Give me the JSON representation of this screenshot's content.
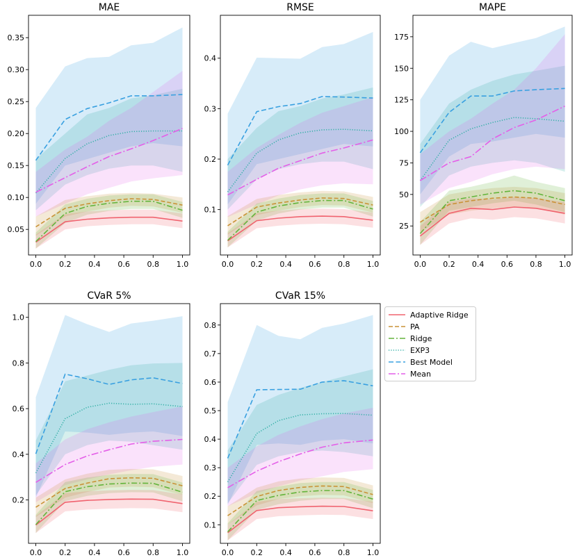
{
  "chart_data": [
    {
      "type": "line",
      "title": "MAE",
      "x": [
        0.0,
        0.2,
        0.35,
        0.5,
        0.65,
        0.8,
        1.0
      ],
      "xticks": [
        "0.0",
        "0.2",
        "0.4",
        "0.6",
        "0.8",
        "1.0"
      ],
      "ylim": [
        0.01,
        0.385
      ],
      "yticks": [
        "0.05",
        "0.10",
        "0.15",
        "0.20",
        "0.25",
        "0.30",
        "0.35"
      ],
      "series": [
        {
          "name": "Adaptive Ridge",
          "values": [
            0.03,
            0.062,
            0.066,
            0.068,
            0.069,
            0.069,
            0.063
          ],
          "upper": [
            0.042,
            0.074,
            0.078,
            0.08,
            0.081,
            0.081,
            0.075
          ],
          "lower": [
            0.02,
            0.05,
            0.055,
            0.057,
            0.058,
            0.058,
            0.052
          ]
        },
        {
          "name": "PA",
          "values": [
            0.054,
            0.083,
            0.09,
            0.095,
            0.098,
            0.097,
            0.088
          ],
          "upper": [
            0.07,
            0.096,
            0.102,
            0.106,
            0.107,
            0.106,
            0.1
          ],
          "lower": [
            0.04,
            0.07,
            0.078,
            0.084,
            0.087,
            0.086,
            0.076
          ]
        },
        {
          "name": "Ridge",
          "values": [
            0.031,
            0.075,
            0.086,
            0.091,
            0.094,
            0.094,
            0.08
          ],
          "upper": [
            0.045,
            0.089,
            0.098,
            0.103,
            0.105,
            0.105,
            0.093
          ],
          "lower": [
            0.02,
            0.06,
            0.073,
            0.079,
            0.082,
            0.082,
            0.068
          ]
        },
        {
          "name": "EXP3",
          "values": [
            0.107,
            0.161,
            0.184,
            0.197,
            0.203,
            0.204,
            0.204
          ],
          "upper": [
            0.16,
            0.2,
            0.23,
            0.24,
            0.255,
            0.26,
            0.27
          ],
          "lower": [
            0.08,
            0.12,
            0.135,
            0.145,
            0.15,
            0.15,
            0.14
          ]
        },
        {
          "name": "Best Model",
          "values": [
            0.158,
            0.222,
            0.239,
            0.248,
            0.259,
            0.259,
            0.261
          ],
          "upper": [
            0.24,
            0.305,
            0.318,
            0.32,
            0.338,
            0.342,
            0.366
          ],
          "lower": [
            0.09,
            0.15,
            0.16,
            0.17,
            0.18,
            0.185,
            0.18
          ]
        },
        {
          "name": "Mean",
          "values": [
            0.108,
            0.131,
            0.148,
            0.164,
            0.176,
            0.189,
            0.208
          ],
          "upper": [
            0.14,
            0.175,
            0.195,
            0.22,
            0.24,
            0.265,
            0.298
          ],
          "lower": [
            0.07,
            0.09,
            0.105,
            0.115,
            0.125,
            0.13,
            0.135
          ]
        }
      ]
    },
    {
      "type": "line",
      "title": "RMSE",
      "x": [
        0.0,
        0.2,
        0.35,
        0.5,
        0.65,
        0.8,
        1.0
      ],
      "xticks": [
        "0.0",
        "0.2",
        "0.4",
        "0.6",
        "0.8",
        "1.0"
      ],
      "ylim": [
        0.01,
        0.485
      ],
      "yticks": [
        "0.1",
        "0.2",
        "0.3",
        "0.4"
      ],
      "series": [
        {
          "name": "Adaptive Ridge",
          "values": [
            0.038,
            0.078,
            0.083,
            0.086,
            0.087,
            0.086,
            0.079
          ],
          "upper": [
            0.053,
            0.093,
            0.098,
            0.101,
            0.102,
            0.101,
            0.094
          ],
          "lower": [
            0.025,
            0.063,
            0.068,
            0.071,
            0.072,
            0.071,
            0.064
          ]
        },
        {
          "name": "PA",
          "values": [
            0.068,
            0.105,
            0.113,
            0.119,
            0.123,
            0.122,
            0.109
          ],
          "upper": [
            0.087,
            0.121,
            0.129,
            0.134,
            0.137,
            0.136,
            0.125
          ],
          "lower": [
            0.05,
            0.089,
            0.098,
            0.105,
            0.109,
            0.108,
            0.094
          ]
        },
        {
          "name": "Ridge",
          "values": [
            0.039,
            0.095,
            0.107,
            0.114,
            0.118,
            0.118,
            0.101
          ],
          "upper": [
            0.056,
            0.112,
            0.122,
            0.129,
            0.132,
            0.132,
            0.117
          ],
          "lower": [
            0.025,
            0.078,
            0.092,
            0.1,
            0.104,
            0.104,
            0.086
          ]
        },
        {
          "name": "EXP3",
          "values": [
            0.135,
            0.212,
            0.238,
            0.252,
            0.258,
            0.259,
            0.256
          ],
          "upper": [
            0.2,
            0.262,
            0.295,
            0.305,
            0.32,
            0.328,
            0.342
          ],
          "lower": [
            0.1,
            0.16,
            0.18,
            0.19,
            0.195,
            0.195,
            0.18
          ]
        },
        {
          "name": "Best Model",
          "values": [
            0.188,
            0.294,
            0.304,
            0.31,
            0.324,
            0.323,
            0.321
          ],
          "upper": [
            0.29,
            0.401,
            0.4,
            0.399,
            0.422,
            0.428,
            0.452
          ],
          "lower": [
            0.11,
            0.19,
            0.2,
            0.21,
            0.22,
            0.23,
            0.225
          ]
        },
        {
          "name": "Mean",
          "values": [
            0.129,
            0.16,
            0.182,
            0.197,
            0.212,
            0.222,
            0.238
          ],
          "upper": [
            0.175,
            0.222,
            0.248,
            0.272,
            0.292,
            0.305,
            0.323
          ],
          "lower": [
            0.085,
            0.11,
            0.128,
            0.14,
            0.148,
            0.152,
            0.15
          ]
        }
      ]
    },
    {
      "type": "line",
      "title": "MAPE",
      "x": [
        0.0,
        0.2,
        0.35,
        0.5,
        0.65,
        0.8,
        1.0
      ],
      "xticks": [
        "0.0",
        "0.2",
        "0.4",
        "0.6",
        "0.8",
        "1.0"
      ],
      "ylim": [
        2,
        192
      ],
      "yticks": [
        "25",
        "50",
        "75",
        "100",
        "125",
        "150",
        "175"
      ],
      "series": [
        {
          "name": "Adaptive Ridge",
          "values": [
            17,
            35,
            39,
            38,
            40,
            39,
            35
          ],
          "upper": [
            25,
            44,
            47,
            46,
            48,
            47,
            44
          ],
          "lower": [
            10,
            27,
            31,
            30,
            32,
            31,
            27
          ]
        },
        {
          "name": "PA",
          "values": [
            28,
            42,
            45,
            47,
            48,
            47,
            42
          ],
          "upper": [
            36,
            50,
            53,
            55,
            56,
            55,
            51
          ],
          "lower": [
            20,
            34,
            37,
            39,
            40,
            39,
            34
          ]
        },
        {
          "name": "Ridge",
          "values": [
            19,
            45,
            48,
            51,
            53,
            51,
            45
          ],
          "upper": [
            28,
            53,
            56,
            60,
            65,
            60,
            55
          ],
          "lower": [
            10,
            37,
            40,
            43,
            45,
            42,
            36
          ]
        },
        {
          "name": "EXP3",
          "values": [
            61,
            93,
            102,
            107,
            111,
            110,
            108
          ],
          "upper": [
            90,
            122,
            133,
            140,
            145,
            148,
            152
          ],
          "lower": [
            40,
            65,
            72,
            75,
            77,
            75,
            68
          ]
        },
        {
          "name": "Best Model",
          "values": [
            83,
            115,
            128,
            128,
            132,
            133,
            134
          ],
          "upper": [
            125,
            160,
            171,
            166,
            170,
            174,
            183
          ],
          "lower": [
            50,
            80,
            90,
            92,
            95,
            98,
            95
          ]
        },
        {
          "name": "Mean",
          "values": [
            61,
            75,
            80,
            94,
            103,
            109,
            120
          ],
          "upper": [
            82,
            100,
            110,
            122,
            133,
            150,
            177
          ],
          "lower": [
            42,
            55,
            60,
            66,
            70,
            72,
            70
          ]
        }
      ]
    },
    {
      "type": "line",
      "title": "CVaR 5%",
      "x": [
        0.0,
        0.2,
        0.35,
        0.5,
        0.65,
        0.8,
        1.0
      ],
      "xticks": [
        "0.0",
        "0.2",
        "0.4",
        "0.6",
        "0.8",
        "1.0"
      ],
      "ylim": [
        0.01,
        1.06
      ],
      "yticks": [
        "0.2",
        "0.4",
        "0.6",
        "0.8",
        "1.0"
      ],
      "series": [
        {
          "name": "Adaptive Ridge",
          "values": [
            0.09,
            0.19,
            0.198,
            0.202,
            0.204,
            0.203,
            0.184
          ],
          "upper": [
            0.13,
            0.23,
            0.238,
            0.242,
            0.244,
            0.243,
            0.224
          ],
          "lower": [
            0.055,
            0.15,
            0.158,
            0.162,
            0.164,
            0.163,
            0.146
          ]
        },
        {
          "name": "PA",
          "values": [
            0.168,
            0.25,
            0.274,
            0.293,
            0.297,
            0.295,
            0.262
          ],
          "upper": [
            0.21,
            0.29,
            0.315,
            0.332,
            0.336,
            0.334,
            0.305
          ],
          "lower": [
            0.125,
            0.21,
            0.235,
            0.254,
            0.258,
            0.256,
            0.222
          ]
        },
        {
          "name": "Ridge",
          "values": [
            0.092,
            0.236,
            0.258,
            0.27,
            0.274,
            0.273,
            0.234
          ],
          "upper": [
            0.135,
            0.278,
            0.298,
            0.31,
            0.314,
            0.313,
            0.276
          ],
          "lower": [
            0.055,
            0.195,
            0.218,
            0.23,
            0.234,
            0.233,
            0.194
          ]
        },
        {
          "name": "EXP3",
          "values": [
            0.318,
            0.556,
            0.606,
            0.624,
            0.619,
            0.621,
            0.609
          ],
          "upper": [
            0.46,
            0.72,
            0.745,
            0.77,
            0.79,
            0.798,
            0.8
          ],
          "lower": [
            0.22,
            0.4,
            0.44,
            0.46,
            0.455,
            0.44,
            0.42
          ]
        },
        {
          "name": "Best Model",
          "values": [
            0.402,
            0.751,
            0.731,
            0.706,
            0.726,
            0.735,
            0.71
          ],
          "upper": [
            0.65,
            1.01,
            0.97,
            0.936,
            0.973,
            0.985,
            1.005
          ],
          "lower": [
            0.21,
            0.5,
            0.495,
            0.485,
            0.495,
            0.5,
            0.48
          ]
        },
        {
          "name": "Mean",
          "values": [
            0.277,
            0.355,
            0.393,
            0.42,
            0.445,
            0.457,
            0.465
          ],
          "upper": [
            0.36,
            0.465,
            0.51,
            0.54,
            0.565,
            0.585,
            0.61
          ],
          "lower": [
            0.19,
            0.265,
            0.29,
            0.312,
            0.33,
            0.345,
            0.355
          ]
        }
      ]
    },
    {
      "type": "line",
      "title": "CVaR 15%",
      "x": [
        0.0,
        0.2,
        0.35,
        0.5,
        0.65,
        0.8,
        1.0
      ],
      "xticks": [
        "0.0",
        "0.2",
        "0.4",
        "0.6",
        "0.8",
        "1.0"
      ],
      "ylim": [
        0.035,
        0.875
      ],
      "yticks": [
        "0.1",
        "0.2",
        "0.3",
        "0.4",
        "0.5",
        "0.6",
        "0.7",
        "0.8"
      ],
      "series": [
        {
          "name": "Adaptive Ridge",
          "values": [
            0.072,
            0.15,
            0.16,
            0.163,
            0.165,
            0.164,
            0.149
          ],
          "upper": [
            0.1,
            0.18,
            0.19,
            0.193,
            0.195,
            0.194,
            0.18
          ],
          "lower": [
            0.045,
            0.12,
            0.13,
            0.133,
            0.135,
            0.134,
            0.12
          ]
        },
        {
          "name": "PA",
          "values": [
            0.132,
            0.199,
            0.22,
            0.231,
            0.236,
            0.234,
            0.206
          ],
          "upper": [
            0.165,
            0.23,
            0.252,
            0.262,
            0.266,
            0.264,
            0.238
          ],
          "lower": [
            0.1,
            0.168,
            0.19,
            0.2,
            0.205,
            0.203,
            0.176
          ]
        },
        {
          "name": "Ridge",
          "values": [
            0.075,
            0.185,
            0.203,
            0.215,
            0.22,
            0.22,
            0.19
          ],
          "upper": [
            0.105,
            0.218,
            0.234,
            0.246,
            0.25,
            0.25,
            0.222
          ],
          "lower": [
            0.045,
            0.152,
            0.172,
            0.184,
            0.19,
            0.19,
            0.158
          ]
        },
        {
          "name": "EXP3",
          "values": [
            0.25,
            0.42,
            0.465,
            0.485,
            0.489,
            0.49,
            0.484
          ],
          "upper": [
            0.36,
            0.52,
            0.555,
            0.58,
            0.6,
            0.62,
            0.645
          ],
          "lower": [
            0.175,
            0.31,
            0.34,
            0.355,
            0.36,
            0.355,
            0.34
          ]
        },
        {
          "name": "Best Model",
          "values": [
            0.333,
            0.573,
            0.574,
            0.575,
            0.6,
            0.605,
            0.587
          ],
          "upper": [
            0.53,
            0.8,
            0.762,
            0.75,
            0.79,
            0.805,
            0.835
          ],
          "lower": [
            0.17,
            0.38,
            0.385,
            0.38,
            0.395,
            0.4,
            0.385
          ]
        },
        {
          "name": "Mean",
          "values": [
            0.23,
            0.288,
            0.321,
            0.348,
            0.372,
            0.387,
            0.397
          ],
          "upper": [
            0.3,
            0.375,
            0.415,
            0.445,
            0.47,
            0.49,
            0.51
          ],
          "lower": [
            0.165,
            0.21,
            0.235,
            0.255,
            0.27,
            0.285,
            0.295
          ]
        }
      ]
    }
  ],
  "legend": {
    "placement": "right of bottom panels",
    "entries": [
      "Adaptive Ridge",
      "PA",
      "Ridge",
      "EXP3",
      "Best Model",
      "Mean"
    ]
  },
  "styles": {
    "Adaptive Ridge": {
      "color": "#f0636f",
      "dash": ""
    },
    "PA": {
      "color": "#c99236",
      "dash": "6,3"
    },
    "Ridge": {
      "color": "#63b43b",
      "dash": "8,3,2,3"
    },
    "EXP3": {
      "color": "#33b0a6",
      "dash": "1.2,2.2"
    },
    "Best Model": {
      "color": "#39a0e0",
      "dash": "7,3.5"
    },
    "Mean": {
      "color": "#e45fe8",
      "dash": "10,3,2,3"
    }
  }
}
